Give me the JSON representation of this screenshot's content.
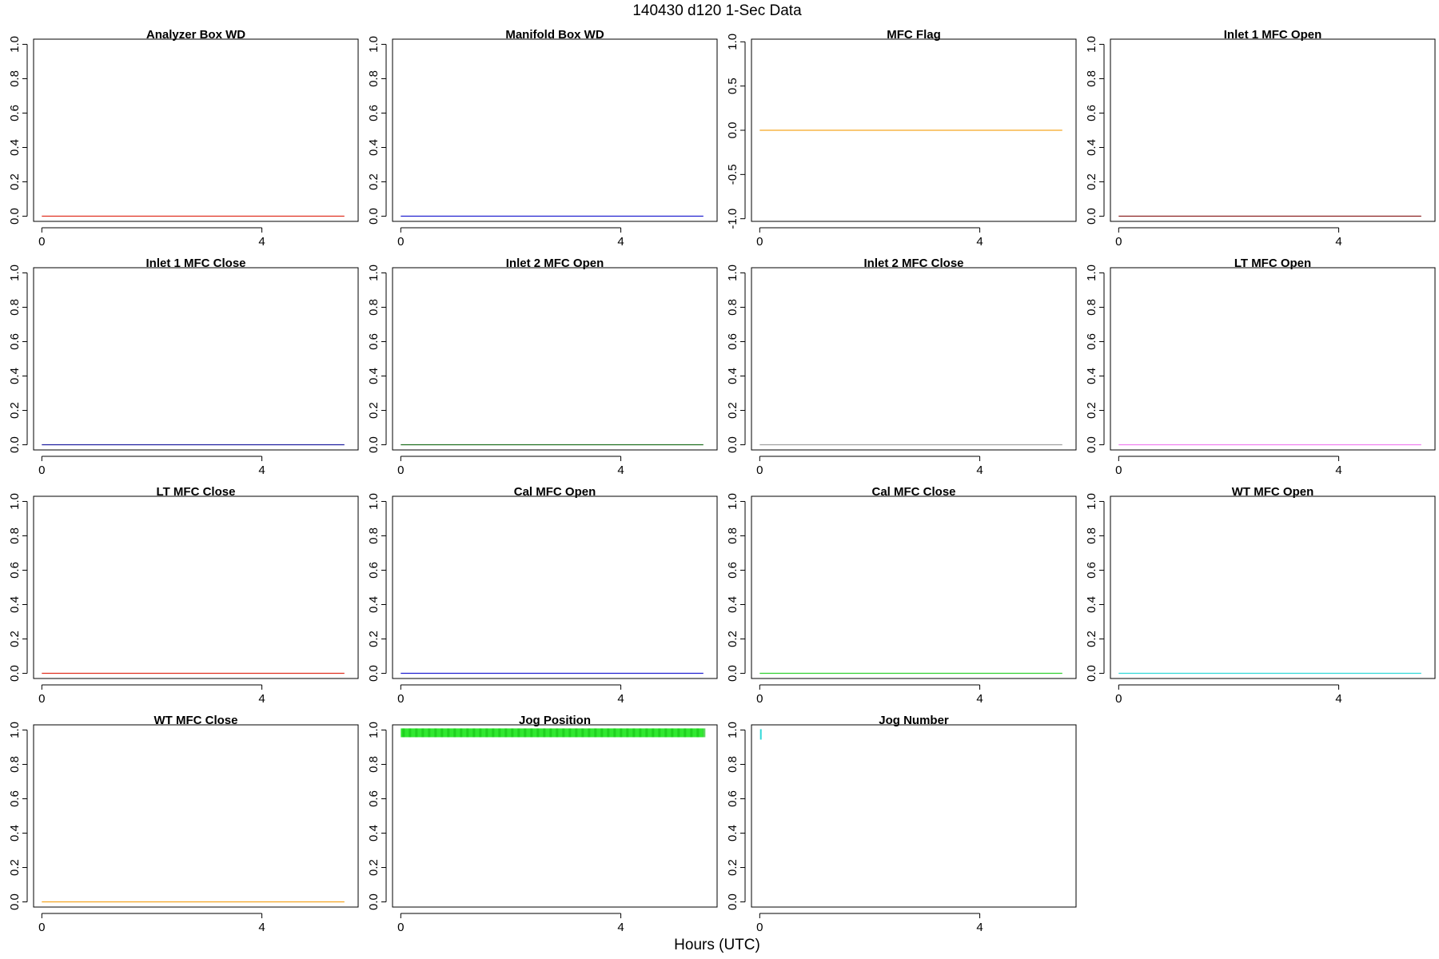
{
  "figure": {
    "title": "140430   d120   1-Sec Data",
    "xlabel": "Hours (UTC)"
  },
  "chart_data": [
    {
      "type": "line",
      "title": "Analyzer Box WD",
      "x": [
        0,
        5.5
      ],
      "y": [
        0,
        0
      ],
      "color": "#e03020",
      "xlim": [
        -0.15,
        5.75
      ],
      "ylim": [
        -0.03,
        1.03
      ],
      "xticks": [
        0,
        4
      ],
      "yticks": [
        0.0,
        0.2,
        0.4,
        0.6,
        0.8,
        1.0
      ],
      "grid": false
    },
    {
      "type": "line",
      "title": "Manifold Box WD",
      "x": [
        0,
        5.5
      ],
      "y": [
        0,
        0
      ],
      "color": "#2020d0",
      "xlim": [
        -0.15,
        5.75
      ],
      "ylim": [
        -0.03,
        1.03
      ],
      "xticks": [
        0,
        4
      ],
      "yticks": [
        0.0,
        0.2,
        0.4,
        0.6,
        0.8,
        1.0
      ],
      "grid": false
    },
    {
      "type": "line",
      "title": "MFC Flag",
      "x": [
        0,
        5.5
      ],
      "y": [
        0,
        0
      ],
      "color": "#f5a623",
      "xlim": [
        -0.15,
        5.75
      ],
      "ylim": [
        -1.03,
        1.03
      ],
      "xticks": [
        0,
        4
      ],
      "yticks": [
        -1.0,
        -0.5,
        0.0,
        0.5,
        1.0
      ],
      "grid": false
    },
    {
      "type": "line",
      "title": "Inlet 1 MFC Open",
      "x": [
        0,
        5.5
      ],
      "y": [
        0,
        0
      ],
      "color": "#8b2020",
      "xlim": [
        -0.15,
        5.75
      ],
      "ylim": [
        -0.03,
        1.03
      ],
      "xticks": [
        0,
        4
      ],
      "yticks": [
        0.0,
        0.2,
        0.4,
        0.6,
        0.8,
        1.0
      ],
      "grid": false
    },
    {
      "type": "line",
      "title": "Inlet 1 MFC Close",
      "x": [
        0,
        5.5
      ],
      "y": [
        0,
        0
      ],
      "color": "#2020a0",
      "xlim": [
        -0.15,
        5.75
      ],
      "ylim": [
        -0.03,
        1.03
      ],
      "xticks": [
        0,
        4
      ],
      "yticks": [
        0.0,
        0.2,
        0.4,
        0.6,
        0.8,
        1.0
      ],
      "grid": false
    },
    {
      "type": "line",
      "title": "Inlet 2 MFC Open",
      "x": [
        0,
        5.5
      ],
      "y": [
        0,
        0
      ],
      "color": "#207020",
      "xlim": [
        -0.15,
        5.75
      ],
      "ylim": [
        -0.03,
        1.03
      ],
      "xticks": [
        0,
        4
      ],
      "yticks": [
        0.0,
        0.2,
        0.4,
        0.6,
        0.8,
        1.0
      ],
      "grid": false
    },
    {
      "type": "line",
      "title": "Inlet 2 MFC Close",
      "x": [
        0,
        5.5
      ],
      "y": [
        0,
        0
      ],
      "color": "#a0a0a0",
      "xlim": [
        -0.15,
        5.75
      ],
      "ylim": [
        -0.03,
        1.03
      ],
      "xticks": [
        0,
        4
      ],
      "yticks": [
        0.0,
        0.2,
        0.4,
        0.6,
        0.8,
        1.0
      ],
      "grid": false
    },
    {
      "type": "line",
      "title": "LT MFC Open",
      "x": [
        0,
        5.5
      ],
      "y": [
        0,
        0
      ],
      "color": "#f080f0",
      "xlim": [
        -0.15,
        5.75
      ],
      "ylim": [
        -0.03,
        1.03
      ],
      "xticks": [
        0,
        4
      ],
      "yticks": [
        0.0,
        0.2,
        0.4,
        0.6,
        0.8,
        1.0
      ],
      "grid": false
    },
    {
      "type": "line",
      "title": "LT MFC Close",
      "x": [
        0,
        5.5
      ],
      "y": [
        0,
        0
      ],
      "color": "#e03020",
      "xlim": [
        -0.15,
        5.75
      ],
      "ylim": [
        -0.03,
        1.03
      ],
      "xticks": [
        0,
        4
      ],
      "yticks": [
        0.0,
        0.2,
        0.4,
        0.6,
        0.8,
        1.0
      ],
      "grid": false
    },
    {
      "type": "line",
      "title": "Cal MFC Open",
      "x": [
        0,
        5.5
      ],
      "y": [
        0,
        0
      ],
      "color": "#2020d0",
      "xlim": [
        -0.15,
        5.75
      ],
      "ylim": [
        -0.03,
        1.03
      ],
      "xticks": [
        0,
        4
      ],
      "yticks": [
        0.0,
        0.2,
        0.4,
        0.6,
        0.8,
        1.0
      ],
      "grid": false
    },
    {
      "type": "line",
      "title": "Cal MFC Close",
      "x": [
        0,
        5.5
      ],
      "y": [
        0,
        0
      ],
      "color": "#30d030",
      "xlim": [
        -0.15,
        5.75
      ],
      "ylim": [
        -0.03,
        1.03
      ],
      "xticks": [
        0,
        4
      ],
      "yticks": [
        0.0,
        0.2,
        0.4,
        0.6,
        0.8,
        1.0
      ],
      "grid": false
    },
    {
      "type": "line",
      "title": "WT MFC Open",
      "x": [
        0,
        5.5
      ],
      "y": [
        0,
        0
      ],
      "color": "#30d8d8",
      "xlim": [
        -0.15,
        5.75
      ],
      "ylim": [
        -0.03,
        1.03
      ],
      "xticks": [
        0,
        4
      ],
      "yticks": [
        0.0,
        0.2,
        0.4,
        0.6,
        0.8,
        1.0
      ],
      "grid": false
    },
    {
      "type": "line",
      "title": "WT MFC Close",
      "x": [
        0,
        5.5
      ],
      "y": [
        0,
        0
      ],
      "color": "#f5a623",
      "xlim": [
        -0.15,
        5.75
      ],
      "ylim": [
        -0.03,
        1.03
      ],
      "xticks": [
        0,
        4
      ],
      "yticks": [
        0.0,
        0.2,
        0.4,
        0.6,
        0.8,
        1.0
      ],
      "grid": false
    },
    {
      "type": "line",
      "title": "Jog Position",
      "x": [
        0,
        5.5
      ],
      "y": [
        1,
        1
      ],
      "color": "#30e830",
      "style": "dense-band",
      "xlim": [
        -0.15,
        5.75
      ],
      "ylim": [
        -0.03,
        1.03
      ],
      "xticks": [
        0,
        4
      ],
      "yticks": [
        0.0,
        0.2,
        0.4,
        0.6,
        0.8,
        1.0
      ],
      "grid": false
    },
    {
      "type": "scatter",
      "title": "Jog Number",
      "x": [
        0.02
      ],
      "y": [
        1
      ],
      "color": "#30d8d8",
      "xlim": [
        -0.15,
        5.75
      ],
      "ylim": [
        -0.03,
        1.03
      ],
      "xticks": [
        0,
        4
      ],
      "yticks": [
        0.0,
        0.2,
        0.4,
        0.6,
        0.8,
        1.0
      ],
      "grid": false
    }
  ]
}
